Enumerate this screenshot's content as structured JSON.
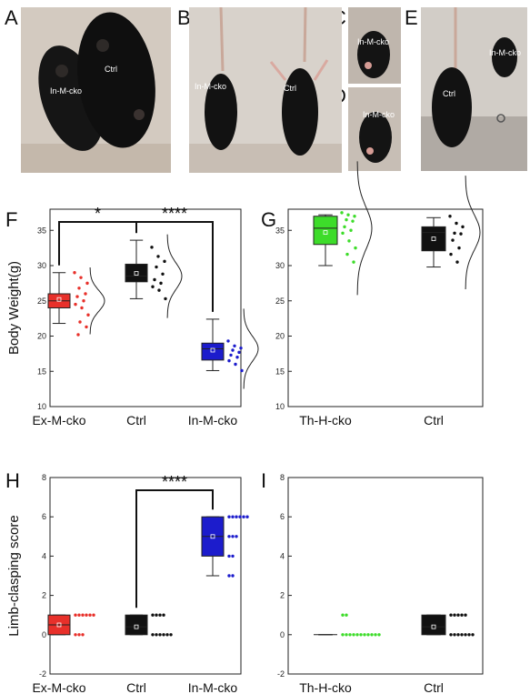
{
  "panels": {
    "A": {
      "letter": "A",
      "labels": [
        "In-M-cko",
        "Ctrl"
      ]
    },
    "B": {
      "letter": "B",
      "labels": [
        "In-M-cko",
        "Ctrl"
      ]
    },
    "C": {
      "letter": "C",
      "labels": [
        "In-M-cko"
      ]
    },
    "D": {
      "letter": "D",
      "labels": [
        "In-M-cko"
      ]
    },
    "E": {
      "letter": "E",
      "labels": [
        "Ctrl",
        "In-M-cko"
      ]
    },
    "F": {
      "letter": "F"
    },
    "G": {
      "letter": "G"
    },
    "H": {
      "letter": "H"
    },
    "I": {
      "letter": "I"
    }
  },
  "colors": {
    "ex_m_cko": "#e8302a",
    "ctrl": "#111111",
    "in_m_cko": "#1c1ccc",
    "th_h_cko": "#3ddc2a",
    "ctrl_dots": "#111111",
    "photo_bg": "#c9c2bb"
  },
  "chart_data": [
    {
      "id": "F",
      "type": "box",
      "ylabel": "Body Weight(g)",
      "ylim": [
        10,
        38
      ],
      "yticks": [
        10,
        15,
        20,
        25,
        30,
        35
      ],
      "categories": [
        "Ex-M-cko",
        "Ctrl",
        "In-M-cko"
      ],
      "boxes": [
        {
          "name": "Ex-M-cko",
          "color": "ex_m_cko",
          "whisker_low": 21.8,
          "q1": 24.0,
          "median": 25.0,
          "q3": 26.0,
          "whisker_high": 29.0,
          "mean": 25.2,
          "points": [
            29.0,
            28.3,
            27.5,
            26.8,
            26.0,
            25.6,
            25.0,
            24.5,
            24.0,
            23.0,
            22.0,
            21.3,
            20.2
          ]
        },
        {
          "name": "Ctrl",
          "color": "ctrl",
          "whisker_low": 25.3,
          "q1": 27.7,
          "median": 28.5,
          "q3": 30.2,
          "whisker_high": 33.6,
          "mean": 28.9,
          "points": [
            32.6,
            31.3,
            30.6,
            29.8,
            28.8,
            28.0,
            27.5,
            27.0,
            26.5,
            25.3
          ]
        },
        {
          "name": "In-M-cko",
          "color": "in_m_cko",
          "whisker_low": 15.1,
          "q1": 16.6,
          "median": 18.2,
          "q3": 19.0,
          "whisker_high": 22.4,
          "mean": 18.0,
          "points": [
            19.3,
            18.6,
            18.3,
            18.0,
            17.7,
            17.3,
            17.0,
            16.5,
            16.0,
            15.1
          ]
        }
      ],
      "significance": [
        {
          "from": "Ex-M-cko",
          "to": "Ctrl",
          "label": "*"
        },
        {
          "from": "Ctrl",
          "to": "In-M-cko",
          "label": "****"
        }
      ]
    },
    {
      "id": "G",
      "type": "box",
      "ylabel": "",
      "ylim": [
        10,
        38
      ],
      "yticks": [
        10,
        15,
        20,
        25,
        30,
        35
      ],
      "categories": [
        "Th-H-cko",
        "Ctrl"
      ],
      "boxes": [
        {
          "name": "Th-H-cko",
          "color": "th_h_cko",
          "whisker_low": 30.0,
          "q1": 33.0,
          "median": 35.3,
          "q3": 37.0,
          "whisker_high": 37.2,
          "mean": 34.7,
          "points": [
            37.5,
            37.2,
            37.0,
            36.5,
            36.3,
            35.5,
            35.0,
            34.6,
            33.5,
            32.5,
            31.6,
            30.5
          ]
        },
        {
          "name": "Ctrl",
          "color": "ctrl",
          "whisker_low": 29.8,
          "q1": 32.1,
          "median": 34.7,
          "q3": 35.5,
          "whisker_high": 36.8,
          "mean": 33.8,
          "points": [
            37.0,
            36.0,
            35.5,
            34.6,
            34.5,
            33.6,
            32.5,
            31.6,
            30.5
          ]
        }
      ],
      "significance": []
    },
    {
      "id": "H",
      "type": "box",
      "ylabel": "Limb-clasping score",
      "ylim": [
        -2,
        8
      ],
      "yticks": [
        -2,
        0,
        2,
        4,
        6,
        8
      ],
      "categories": [
        "Ex-M-cko",
        "Ctrl",
        "In-M-cko"
      ],
      "boxes": [
        {
          "name": "Ex-M-cko",
          "color": "ex_m_cko",
          "whisker_low": 0,
          "q1": 0,
          "median": 0.5,
          "q3": 1,
          "whisker_high": 1,
          "mean": 0.5,
          "points": [
            1,
            1,
            1,
            1,
            1,
            1,
            0,
            0,
            0
          ]
        },
        {
          "name": "Ctrl",
          "color": "ctrl",
          "whisker_low": 0,
          "q1": 0,
          "median": 0.4,
          "q3": 1,
          "whisker_high": 1,
          "mean": 0.4,
          "points": [
            1,
            1,
            1,
            1,
            0,
            0,
            0,
            0,
            0,
            0
          ]
        },
        {
          "name": "In-M-cko",
          "color": "in_m_cko",
          "whisker_low": 3,
          "q1": 4,
          "median": 5,
          "q3": 6,
          "whisker_high": 6,
          "mean": 5,
          "points": [
            6,
            6,
            6,
            6,
            6,
            6,
            5,
            5,
            5,
            4,
            4,
            3,
            3
          ]
        }
      ],
      "significance": [
        {
          "from": "Ctrl",
          "to": "In-M-cko",
          "label": "****"
        }
      ]
    },
    {
      "id": "I",
      "type": "box",
      "ylabel": "",
      "ylim": [
        -2,
        8
      ],
      "yticks": [
        -2,
        0,
        2,
        4,
        6,
        8
      ],
      "categories": [
        "Th-H-cko",
        "Ctrl"
      ],
      "boxes": [
        {
          "name": "Th-H-cko",
          "color": "th_h_cko",
          "whisker_low": 0,
          "q1": 0,
          "median": 0,
          "q3": 0,
          "whisker_high": 0,
          "mean": 0.15,
          "points": [
            1,
            1,
            0,
            0,
            0,
            0,
            0,
            0,
            0,
            0,
            0,
            0,
            0
          ]
        },
        {
          "name": "Ctrl",
          "color": "ctrl",
          "whisker_low": 0,
          "q1": 0,
          "median": 0.4,
          "q3": 1,
          "whisker_high": 1,
          "mean": 0.4,
          "points": [
            1,
            1,
            1,
            1,
            1,
            0,
            0,
            0,
            0,
            0,
            0,
            0
          ]
        }
      ],
      "significance": []
    }
  ]
}
